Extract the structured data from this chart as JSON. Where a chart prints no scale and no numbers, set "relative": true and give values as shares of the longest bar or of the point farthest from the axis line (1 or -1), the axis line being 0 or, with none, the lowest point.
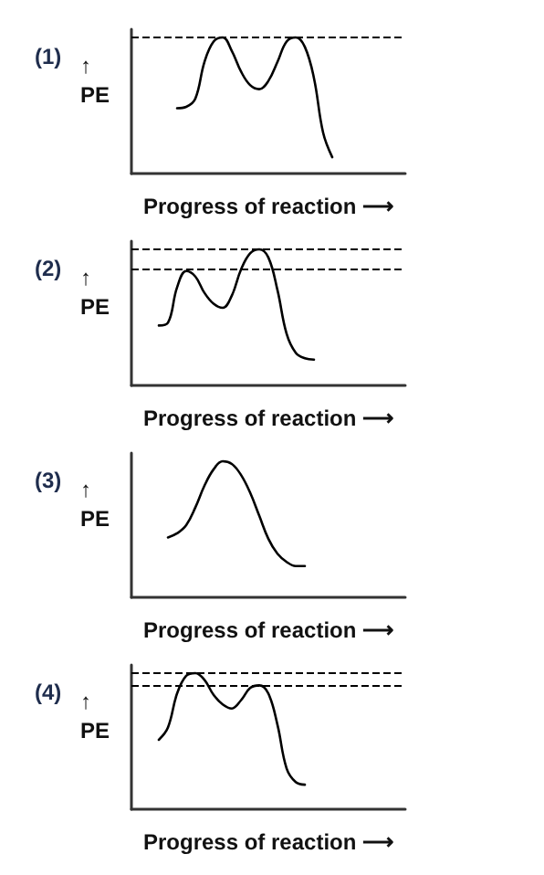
{
  "chart_data": [
    {
      "type": "line",
      "title": "(1)",
      "xlabel": "Progress of reaction ⟶",
      "ylabel": "↑\nPE",
      "relative": true,
      "tick_labels": false,
      "grid": false,
      "line_style": "solid",
      "categories": [
        null,
        null,
        null,
        null,
        null,
        null,
        null,
        null,
        null,
        null,
        null,
        null,
        null,
        null,
        null,
        null,
        null,
        null,
        null,
        null,
        null,
        null,
        null,
        null,
        null,
        null,
        null,
        null,
        null,
        null,
        null
      ],
      "series": [
        {
          "color": "#000000",
          "values": [
            null,
            null,
            null,
            null,
            null,
            0.48,
            0.49,
            0.55,
            0.82,
            0.97,
            1,
            0.9,
            0.75,
            0.65,
            0.62,
            0.68,
            0.82,
            0.97,
            1,
            0.93,
            0.7,
            0.3,
            0.12,
            null,
            null,
            null,
            null,
            null,
            null,
            null,
            null
          ]
        }
      ],
      "ref_lines": [
        {
          "axis": "y",
          "value": 1,
          "color": "#000000",
          "line_style": "dashed"
        }
      ]
    },
    {
      "type": "line",
      "title": "(2)",
      "xlabel": "Progress of reaction ⟶",
      "ylabel": "↑\nPE",
      "relative": true,
      "tick_labels": false,
      "grid": false,
      "line_style": "solid",
      "categories": [
        null,
        null,
        null,
        null,
        null,
        null,
        null,
        null,
        null,
        null,
        null,
        null,
        null,
        null,
        null,
        null,
        null,
        null,
        null,
        null,
        null,
        null,
        null,
        null,
        null,
        null,
        null,
        null,
        null,
        null,
        null
      ],
      "series": [
        {
          "color": "#000000",
          "values": [
            null,
            null,
            null,
            0.44,
            0.46,
            0.72,
            0.84,
            0.8,
            0.68,
            0.6,
            0.57,
            0.66,
            0.85,
            0.97,
            1,
            0.94,
            0.7,
            0.38,
            0.24,
            0.2,
            0.19,
            null,
            null,
            null,
            null,
            null,
            null,
            null,
            null,
            null,
            null
          ]
        }
      ],
      "ref_lines": [
        {
          "axis": "y",
          "value": 1,
          "color": "#000000",
          "line_style": "dashed"
        },
        {
          "axis": "y",
          "value": 0.85,
          "color": "#000000",
          "line_style": "dashed"
        }
      ]
    },
    {
      "type": "line",
      "title": "(3)",
      "xlabel": "Progress of reaction ⟶",
      "ylabel": "↑\nPE",
      "relative": true,
      "tick_labels": false,
      "grid": false,
      "line_style": "solid",
      "categories": [
        null,
        null,
        null,
        null,
        null,
        null,
        null,
        null,
        null,
        null,
        null,
        null,
        null,
        null,
        null,
        null,
        null,
        null,
        null,
        null,
        null,
        null,
        null,
        null,
        null,
        null,
        null,
        null,
        null,
        null,
        null
      ],
      "series": [
        {
          "color": "#000000",
          "values": [
            null,
            null,
            null,
            null,
            0.44,
            0.47,
            0.53,
            0.66,
            0.82,
            0.94,
            1,
            0.98,
            0.9,
            0.77,
            0.6,
            0.43,
            0.32,
            0.26,
            0.23,
            0.23,
            null,
            null,
            null,
            null,
            null,
            null,
            null,
            null,
            null,
            null,
            null
          ]
        }
      ]
    },
    {
      "type": "line",
      "title": "(4)",
      "xlabel": "Progress of reaction ⟶",
      "ylabel": "↑\nPE",
      "relative": true,
      "tick_labels": false,
      "grid": false,
      "line_style": "solid",
      "categories": [
        null,
        null,
        null,
        null,
        null,
        null,
        null,
        null,
        null,
        null,
        null,
        null,
        null,
        null,
        null,
        null,
        null,
        null,
        null,
        null,
        null,
        null,
        null,
        null,
        null,
        null,
        null,
        null,
        null,
        null,
        null
      ],
      "series": [
        {
          "color": "#000000",
          "values": [
            null,
            null,
            null,
            0.51,
            0.6,
            0.85,
            0.98,
            1,
            0.95,
            0.84,
            0.77,
            0.74,
            0.8,
            0.89,
            0.91,
            0.85,
            0.62,
            0.3,
            0.2,
            0.18,
            null,
            null,
            null,
            null,
            null,
            null,
            null,
            null,
            null,
            null,
            null
          ]
        }
      ],
      "ref_lines": [
        {
          "axis": "y",
          "value": 1,
          "color": "#000000",
          "line_style": "dashed"
        },
        {
          "axis": "y",
          "value": 0.91,
          "color": "#000000",
          "line_style": "dashed"
        }
      ]
    }
  ]
}
